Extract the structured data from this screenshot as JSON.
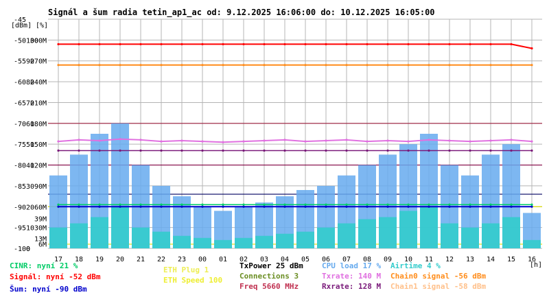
{
  "title": "Signál a šum radia tetin_ap1_ac od: 9.12.2025 16:06:00 do: 10.12.2025 16:05:00",
  "colors": {
    "background": "#ffffff",
    "plot_bg": "#ffffff",
    "grid": "#b4b4b4",
    "signal": "#ff0000",
    "noise": "#0000cc",
    "cinr": "#00cc66",
    "chain0": "#ff8c1a",
    "chain1": "#ffc08a",
    "txrate": "#e070e0",
    "rxrate": "#7a1a7a",
    "cpu_load": "#66aaee",
    "airtime": "#33cccc",
    "eth_plug": "#ffff55",
    "eth_speed": "#ffff33",
    "txpower": "#000000",
    "connections": "#6b8e23",
    "freq": "#c03050"
  },
  "chart_data": {
    "type": "line",
    "title": "Signál a šum radia tetin_ap1_ac od: 9.12.2025 16:06:00 do: 10.12.2025 16:05:00",
    "y_unit_labels": [
      "[dBm]",
      "[%]"
    ],
    "x_unit_label": "[h]",
    "yticks_dbm": [
      "-45",
      "-50",
      "-55",
      "-60",
      "-65",
      "-70",
      "-75",
      "-80",
      "-85",
      "-90",
      "-95",
      "-100"
    ],
    "yticks_pct": [
      "100",
      "90",
      "80",
      "70",
      "60",
      "50",
      "40",
      "30",
      "20",
      "10",
      "0"
    ],
    "yticks_rate": [
      "300M",
      "270M",
      "240M",
      "210M",
      "180M",
      "150M",
      "120M",
      "90M",
      "60M",
      "30M"
    ],
    "rate_markers": [
      {
        "label": "39M",
        "value": 39,
        "color": "#e070e0"
      },
      {
        "label": "13M",
        "value": 13,
        "color": "#e070e0"
      },
      {
        "label": "6M",
        "value": 6,
        "color": "#e070e0"
      }
    ],
    "xticks": [
      "17",
      "18",
      "19",
      "20",
      "21",
      "22",
      "23",
      "00",
      "01",
      "02",
      "03",
      "04",
      "05",
      "06",
      "07",
      "08",
      "09",
      "10",
      "11",
      "12",
      "13",
      "14",
      "15",
      "16"
    ],
    "ylim_dbm": [
      -100,
      -45
    ],
    "grid": true,
    "series": [
      {
        "name": "Signál",
        "unit": "dBm",
        "values": [
          -51,
          -51,
          -51,
          -51,
          -51,
          -51,
          -51,
          -51,
          -51,
          -51,
          -51,
          -51,
          -51,
          -51,
          -51,
          -51,
          -51,
          -51,
          -51,
          -51,
          -51,
          -51,
          -51,
          -52
        ]
      },
      {
        "name": "Chain0 signal",
        "unit": "dBm",
        "values": [
          -56,
          -56,
          -56,
          -56,
          -56,
          -56,
          -56,
          -56,
          -56,
          -56,
          -56,
          -56,
          -56,
          -56,
          -56,
          -56,
          -56,
          -56,
          -56,
          -56,
          -56,
          -56,
          -56,
          -56
        ]
      },
      {
        "name": "Txrate",
        "unit": "Mbps",
        "values": [
          140,
          142,
          141,
          143,
          142,
          140,
          141,
          140,
          139,
          140,
          141,
          142,
          140,
          141,
          142,
          140,
          141,
          140,
          142,
          141,
          140,
          141,
          142,
          140
        ]
      },
      {
        "name": "Rxrate",
        "unit": "Mbps",
        "values": [
          128,
          128,
          128,
          128,
          128,
          128,
          128,
          128,
          128,
          128,
          128,
          128,
          128,
          128,
          128,
          128,
          128,
          128,
          128,
          128,
          128,
          128,
          128,
          128
        ]
      },
      {
        "name": "Šum",
        "unit": "dBm",
        "values": [
          -90,
          -90,
          -90,
          -90,
          -90,
          -90,
          -90,
          -90,
          -90,
          -90,
          -90,
          -90,
          -90,
          -90,
          -90,
          -90,
          -90,
          -90,
          -90,
          -90,
          -90,
          -90,
          -90,
          -90
        ]
      },
      {
        "name": "CINR",
        "unit": "%",
        "values": [
          21,
          21,
          21,
          21,
          21,
          21,
          21,
          21,
          21,
          21,
          21,
          21,
          21,
          21,
          21,
          21,
          21,
          21,
          21,
          21,
          21,
          21,
          21,
          21
        ]
      },
      {
        "name": "CPU load",
        "unit": "%",
        "values": [
          35,
          45,
          55,
          60,
          40,
          30,
          25,
          20,
          18,
          20,
          22,
          25,
          28,
          30,
          35,
          40,
          45,
          50,
          55,
          40,
          35,
          45,
          50,
          17
        ]
      },
      {
        "name": "Airtime",
        "unit": "%",
        "values": [
          10,
          12,
          15,
          20,
          10,
          8,
          6,
          5,
          4,
          5,
          6,
          7,
          8,
          10,
          12,
          14,
          15,
          18,
          20,
          12,
          10,
          12,
          15,
          4
        ]
      }
    ],
    "ref_lines_dbm": [
      {
        "value": -70,
        "color": "#a02040"
      },
      {
        "value": -80,
        "color": "#800040"
      },
      {
        "value": -87,
        "color": "#000060"
      },
      {
        "value": -90,
        "color": "#dddd00"
      },
      {
        "value": -99,
        "color": "#dddd00"
      }
    ]
  },
  "legend": {
    "col1": [
      "CINR: nyní 21 %",
      "Signál: nyní -52 dBm",
      "Šum: nyní -90 dBm"
    ],
    "col2": [
      "ETH Plug 1",
      "ETH Speed 100"
    ],
    "col3": [
      "TxPower 25 dBm",
      "Connections 3",
      "Freq 5660 MHz"
    ],
    "col4": [
      "CPU load 17 %",
      "Txrate: 140 M",
      "Rxrate: 128 M"
    ],
    "col5": [
      "Airtime 4 %",
      "Chain0 signal -56 dBm",
      "Chain1 signal -58 dBm"
    ]
  }
}
